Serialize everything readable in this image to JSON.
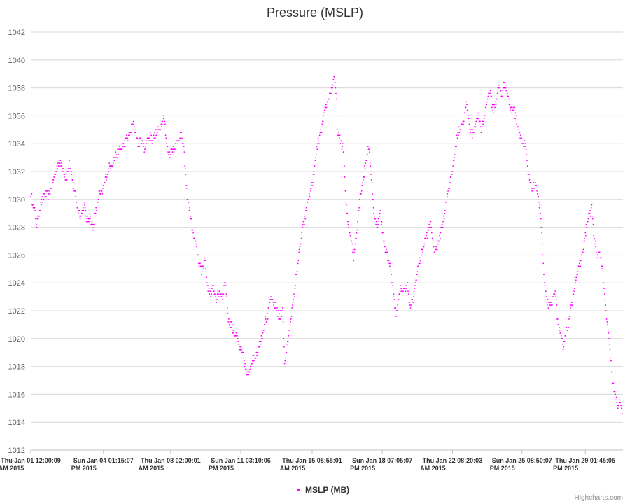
{
  "chart_data": {
    "type": "scatter",
    "title": "Pressure (MSLP)",
    "xlabel": "",
    "ylabel": "",
    "ylim": [
      1012,
      1042
    ],
    "y_ticks": [
      1012,
      1014,
      1016,
      1018,
      1020,
      1022,
      1024,
      1026,
      1028,
      1030,
      1032,
      1034,
      1036,
      1038,
      1040,
      1042
    ],
    "x_range_days": [
      0,
      29.98
    ],
    "x_ticks": [
      {
        "day": 0.0,
        "label_line1": "Thu Jan 01 12:00:09",
        "label_line2": "AM 2015"
      },
      {
        "day": 3.677,
        "label_line1": "Sun Jan 04 01:15:07",
        "label_line2": "PM 2015"
      },
      {
        "day": 7.083,
        "label_line1": "Thu Jan 08 02:00:01",
        "label_line2": "AM 2015"
      },
      {
        "day": 10.632,
        "label_line1": "Sun Jan 11 03:10:06",
        "label_line2": "PM 2015"
      },
      {
        "day": 14.246,
        "label_line1": "Thu Jan 15 05:55:01",
        "label_line2": "AM 2015"
      },
      {
        "day": 17.795,
        "label_line1": "Sun Jan 18 07:05:07",
        "label_line2": "PM 2015"
      },
      {
        "day": 21.347,
        "label_line1": "Thu Jan 22 08:20:03",
        "label_line2": "AM 2015"
      },
      {
        "day": 24.868,
        "label_line1": "Sun Jan 25 08:50:07",
        "label_line2": "PM 2015"
      },
      {
        "day": 28.073,
        "label_line1": "Thu Jan 29 01:45:05",
        "label_line2": "PM 2015"
      }
    ],
    "grid": true,
    "legend_position": "bottom-center",
    "series": [
      {
        "name": "MSLP (MB)",
        "color": "#ff00ff",
        "points": [
          [
            0.0,
            1030.4
          ],
          [
            0.2,
            1029.2
          ],
          [
            0.3,
            1028.2
          ],
          [
            0.5,
            1029.6
          ],
          [
            0.7,
            1030.4
          ],
          [
            0.9,
            1030.2
          ],
          [
            1.1,
            1031.2
          ],
          [
            1.4,
            1032.6
          ],
          [
            1.6,
            1032.4
          ],
          [
            1.8,
            1031.4
          ],
          [
            1.95,
            1032.6
          ],
          [
            2.1,
            1031.4
          ],
          [
            2.25,
            1030.4
          ],
          [
            2.4,
            1029.2
          ],
          [
            2.55,
            1028.8
          ],
          [
            2.7,
            1029.6
          ],
          [
            2.85,
            1028.4
          ],
          [
            3.0,
            1028.8
          ],
          [
            3.15,
            1027.8
          ],
          [
            3.3,
            1029.2
          ],
          [
            3.45,
            1030.4
          ],
          [
            3.6,
            1030.4
          ],
          [
            3.8,
            1031.6
          ],
          [
            4.0,
            1032.4
          ],
          [
            4.2,
            1032.8
          ],
          [
            4.4,
            1033.4
          ],
          [
            4.6,
            1033.6
          ],
          [
            4.8,
            1034.2
          ],
          [
            5.0,
            1034.6
          ],
          [
            5.15,
            1035.4
          ],
          [
            5.3,
            1035.0
          ],
          [
            5.45,
            1033.8
          ],
          [
            5.6,
            1034.4
          ],
          [
            5.75,
            1033.6
          ],
          [
            5.9,
            1034.2
          ],
          [
            6.05,
            1034.6
          ],
          [
            6.2,
            1034.2
          ],
          [
            6.35,
            1034.8
          ],
          [
            6.5,
            1035.0
          ],
          [
            6.65,
            1035.6
          ],
          [
            6.75,
            1036.2
          ],
          [
            6.85,
            1034.2
          ],
          [
            7.0,
            1033.2
          ],
          [
            7.15,
            1033.6
          ],
          [
            7.3,
            1033.8
          ],
          [
            7.45,
            1034.2
          ],
          [
            7.6,
            1034.8
          ],
          [
            7.75,
            1033.6
          ],
          [
            7.9,
            1030.6
          ],
          [
            8.05,
            1029.2
          ],
          [
            8.2,
            1027.6
          ],
          [
            8.35,
            1026.8
          ],
          [
            8.5,
            1025.6
          ],
          [
            8.65,
            1024.8
          ],
          [
            8.8,
            1025.8
          ],
          [
            8.95,
            1023.8
          ],
          [
            9.1,
            1023.2
          ],
          [
            9.25,
            1023.6
          ],
          [
            9.4,
            1022.8
          ],
          [
            9.55,
            1023.4
          ],
          [
            9.7,
            1023.0
          ],
          [
            9.85,
            1024.2
          ],
          [
            10.0,
            1021.4
          ],
          [
            10.15,
            1021.0
          ],
          [
            10.3,
            1020.4
          ],
          [
            10.45,
            1020.0
          ],
          [
            10.6,
            1019.2
          ],
          [
            10.75,
            1018.8
          ],
          [
            10.9,
            1017.6
          ],
          [
            11.0,
            1017.2
          ],
          [
            11.1,
            1018.0
          ],
          [
            11.25,
            1018.6
          ],
          [
            11.4,
            1018.8
          ],
          [
            11.55,
            1019.4
          ],
          [
            11.7,
            1020.2
          ],
          [
            11.85,
            1021.2
          ],
          [
            12.0,
            1021.6
          ],
          [
            12.15,
            1023.0
          ],
          [
            12.3,
            1022.4
          ],
          [
            12.45,
            1022.2
          ],
          [
            12.6,
            1021.4
          ],
          [
            12.75,
            1022.2
          ],
          [
            12.85,
            1018.2
          ],
          [
            13.0,
            1019.6
          ],
          [
            13.15,
            1021.4
          ],
          [
            13.3,
            1022.6
          ],
          [
            13.45,
            1024.6
          ],
          [
            13.6,
            1026.2
          ],
          [
            13.75,
            1027.8
          ],
          [
            13.9,
            1028.8
          ],
          [
            14.05,
            1030.0
          ],
          [
            14.2,
            1030.8
          ],
          [
            14.35,
            1032.0
          ],
          [
            14.5,
            1033.8
          ],
          [
            14.65,
            1034.6
          ],
          [
            14.8,
            1035.6
          ],
          [
            14.95,
            1036.6
          ],
          [
            15.1,
            1037.4
          ],
          [
            15.25,
            1038.0
          ],
          [
            15.35,
            1038.8
          ],
          [
            15.45,
            1037.6
          ],
          [
            15.55,
            1034.6
          ],
          [
            15.7,
            1034.2
          ],
          [
            15.85,
            1033.4
          ],
          [
            15.95,
            1029.6
          ],
          [
            16.1,
            1028.0
          ],
          [
            16.25,
            1027.0
          ],
          [
            16.35,
            1025.8
          ],
          [
            16.5,
            1027.8
          ],
          [
            16.65,
            1030.0
          ],
          [
            16.8,
            1031.2
          ],
          [
            16.95,
            1032.6
          ],
          [
            17.1,
            1033.8
          ],
          [
            17.25,
            1031.6
          ],
          [
            17.4,
            1028.6
          ],
          [
            17.55,
            1028.2
          ],
          [
            17.7,
            1029.0
          ],
          [
            17.85,
            1027.2
          ],
          [
            18.0,
            1026.2
          ],
          [
            18.15,
            1025.6
          ],
          [
            18.3,
            1024.0
          ],
          [
            18.4,
            1022.6
          ],
          [
            18.5,
            1021.8
          ],
          [
            18.6,
            1022.6
          ],
          [
            18.75,
            1023.6
          ],
          [
            18.9,
            1023.4
          ],
          [
            19.05,
            1024.0
          ],
          [
            19.2,
            1022.2
          ],
          [
            19.35,
            1022.8
          ],
          [
            19.5,
            1024.2
          ],
          [
            19.65,
            1025.4
          ],
          [
            19.8,
            1026.2
          ],
          [
            19.95,
            1027.0
          ],
          [
            20.1,
            1027.6
          ],
          [
            20.25,
            1028.4
          ],
          [
            20.4,
            1026.4
          ],
          [
            20.55,
            1026.4
          ],
          [
            20.7,
            1027.4
          ],
          [
            20.85,
            1028.2
          ],
          [
            21.0,
            1029.6
          ],
          [
            21.15,
            1030.8
          ],
          [
            21.3,
            1031.6
          ],
          [
            21.45,
            1033.2
          ],
          [
            21.6,
            1034.6
          ],
          [
            21.75,
            1035.2
          ],
          [
            21.9,
            1035.6
          ],
          [
            22.05,
            1036.8
          ],
          [
            22.2,
            1035.4
          ],
          [
            22.35,
            1034.6
          ],
          [
            22.5,
            1035.4
          ],
          [
            22.65,
            1036.0
          ],
          [
            22.8,
            1035.0
          ],
          [
            22.95,
            1035.8
          ],
          [
            23.1,
            1037.2
          ],
          [
            23.25,
            1037.8
          ],
          [
            23.4,
            1036.4
          ],
          [
            23.55,
            1037.0
          ],
          [
            23.7,
            1038.2
          ],
          [
            23.85,
            1037.4
          ],
          [
            24.0,
            1038.4
          ],
          [
            24.15,
            1037.6
          ],
          [
            24.3,
            1036.4
          ],
          [
            24.45,
            1036.6
          ],
          [
            24.6,
            1035.6
          ],
          [
            24.75,
            1034.8
          ],
          [
            24.9,
            1034.0
          ],
          [
            25.05,
            1033.8
          ],
          [
            25.2,
            1031.6
          ],
          [
            25.35,
            1030.8
          ],
          [
            25.5,
            1031.0
          ],
          [
            25.65,
            1030.6
          ],
          [
            25.8,
            1029.2
          ],
          [
            25.9,
            1026.8
          ],
          [
            26.0,
            1023.8
          ],
          [
            26.1,
            1022.8
          ],
          [
            26.25,
            1022.2
          ],
          [
            26.4,
            1022.6
          ],
          [
            26.55,
            1023.6
          ],
          [
            26.65,
            1021.6
          ],
          [
            26.8,
            1020.2
          ],
          [
            26.95,
            1019.4
          ],
          [
            27.1,
            1020.6
          ],
          [
            27.25,
            1021.2
          ],
          [
            27.4,
            1022.6
          ],
          [
            27.55,
            1024.2
          ],
          [
            27.7,
            1024.8
          ],
          [
            27.85,
            1025.6
          ],
          [
            28.0,
            1026.8
          ],
          [
            28.15,
            1028.2
          ],
          [
            28.3,
            1029.0
          ],
          [
            28.4,
            1029.4
          ],
          [
            28.5,
            1027.6
          ],
          [
            28.65,
            1025.8
          ],
          [
            28.8,
            1026.2
          ],
          [
            28.95,
            1025.0
          ],
          [
            29.05,
            1023.0
          ],
          [
            29.15,
            1021.6
          ],
          [
            29.25,
            1020.2
          ],
          [
            29.35,
            1018.6
          ],
          [
            29.45,
            1017.0
          ],
          [
            29.55,
            1016.0
          ],
          [
            29.65,
            1015.6
          ],
          [
            29.75,
            1015.2
          ],
          [
            29.85,
            1015.4
          ],
          [
            29.95,
            1014.6
          ]
        ]
      }
    ]
  },
  "legend": {
    "label": "MSLP (MB)"
  },
  "credits": "Highcharts.com"
}
